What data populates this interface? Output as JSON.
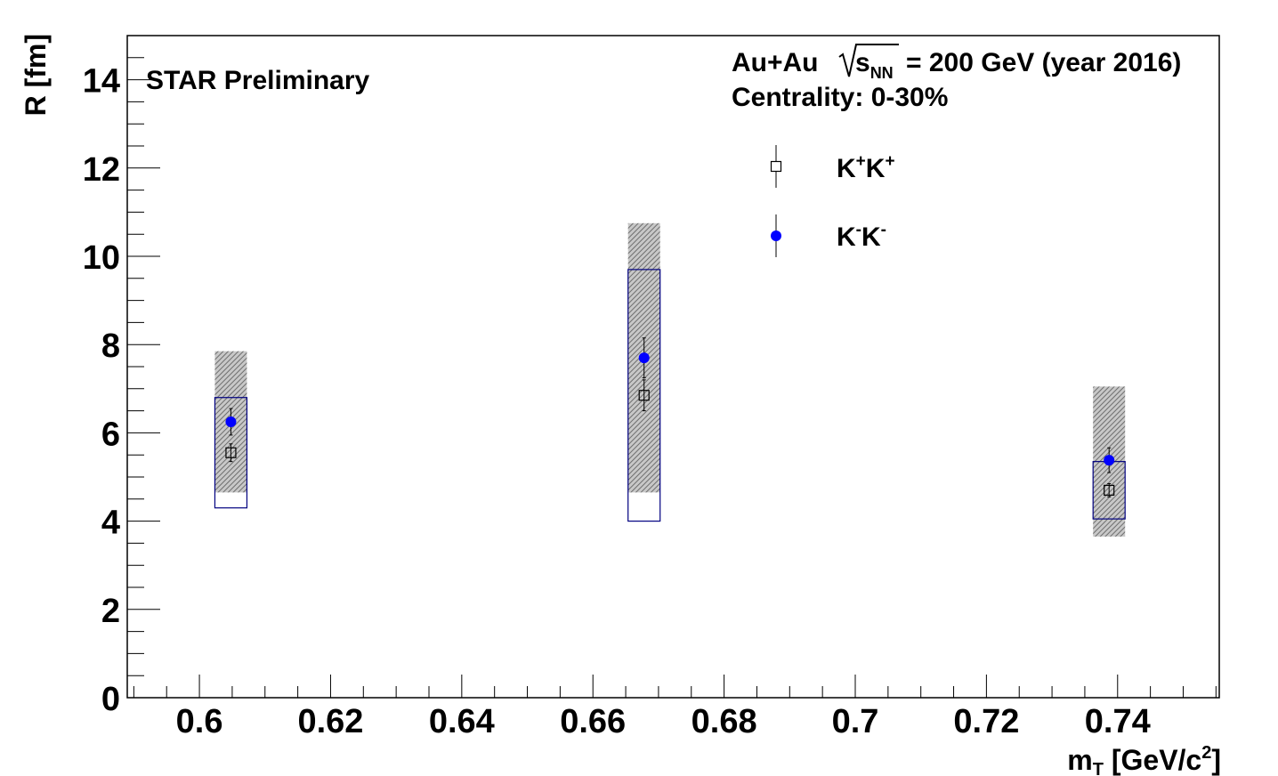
{
  "chart_data": {
    "type": "scatter",
    "xlabel": {
      "main": "m",
      "sub": "T",
      "unit_pre": " [GeV/c",
      "sup": "2",
      "unit_post": "]"
    },
    "ylabel": "R [fm]",
    "xlim": [
      0.589,
      0.7555
    ],
    "ylim": [
      0,
      15
    ],
    "x_ticks": [
      "0.6",
      "0.62",
      "0.64",
      "0.66",
      "0.68",
      "0.7",
      "0.72",
      "0.74"
    ],
    "y_ticks": [
      "0",
      "2",
      "4",
      "6",
      "8",
      "10",
      "12",
      "14"
    ],
    "annotations": {
      "preliminary": "STAR Preliminary",
      "system_pre": "Au+Au",
      "system_s": "s",
      "system_sub": "NN",
      "system_post": "= 200 GeV (year 2016)",
      "centrality": "Centrality: 0-30%"
    },
    "legend_position": "top-right",
    "series": [
      {
        "name": "K+K+",
        "label_parts": {
          "a": "K",
          "a_sup": "+",
          "b": "K",
          "b_sup": "+"
        },
        "marker": "open-square",
        "color": "#000000",
        "points": [
          {
            "x": 0.6048,
            "y": 5.55,
            "stat_err": 0.2,
            "sys_low": 4.3,
            "sys_high": 6.8
          },
          {
            "x": 0.6678,
            "y": 6.85,
            "stat_err": 0.35,
            "sys_low": 4.0,
            "sys_high": 9.7
          },
          {
            "x": 0.7387,
            "y": 4.7,
            "stat_err": 0.15,
            "sys_low": 4.05,
            "sys_high": 5.35
          }
        ]
      },
      {
        "name": "K-K-",
        "label_parts": {
          "a": "K",
          "a_sup": "-",
          "b": "K",
          "b_sup": "-"
        },
        "marker": "filled-circle",
        "color": "#0000ff",
        "points": [
          {
            "x": 0.6048,
            "y": 6.25,
            "stat_err": 0.3,
            "sys_low": 4.65,
            "sys_high": 7.85
          },
          {
            "x": 0.6678,
            "y": 7.7,
            "stat_err": 0.45,
            "sys_low": 4.65,
            "sys_high": 10.75
          },
          {
            "x": 0.7387,
            "y": 5.38,
            "stat_err": 0.28,
            "sys_low": 3.65,
            "sys_high": 7.05
          }
        ]
      }
    ]
  }
}
